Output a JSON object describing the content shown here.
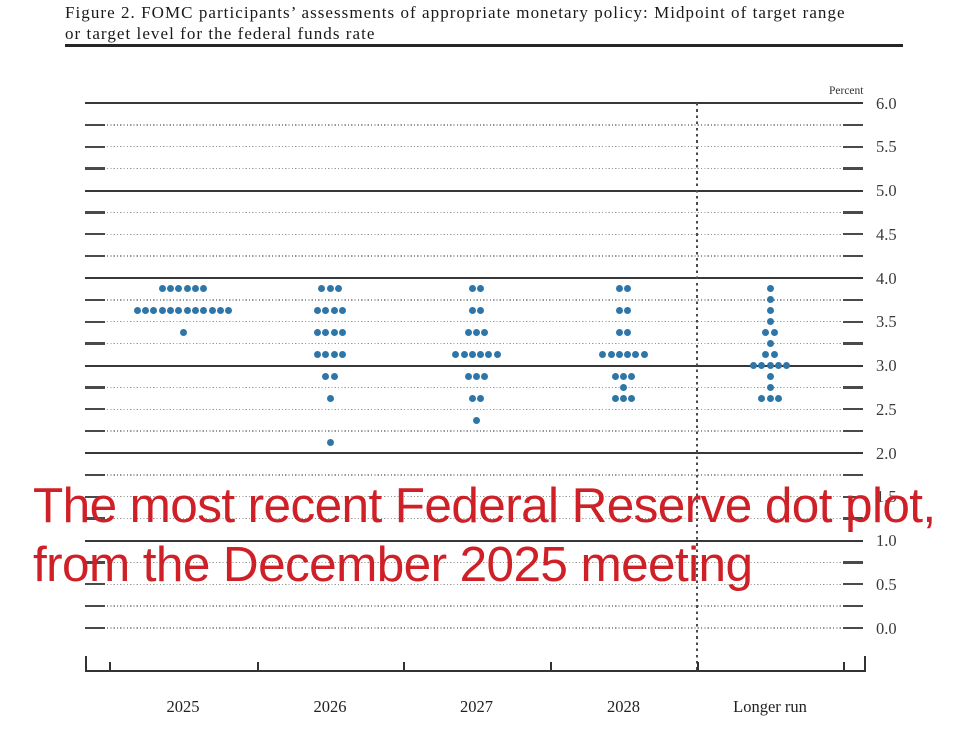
{
  "figure": {
    "caption_line1": "Figure 2. FOMC participants’ assessments of appropriate monetary policy: Midpoint of target range",
    "caption_line2": "or target level for the federal funds rate"
  },
  "chart_data": {
    "type": "scatter",
    "subtype": "fomc-dot-plot",
    "ylabel": "Percent",
    "ylim": [
      0,
      6.25
    ],
    "yticks": [
      "6.0",
      "5.5",
      "5.0",
      "4.5",
      "4.0",
      "3.5",
      "3.0",
      "2.5",
      "2.0",
      "1.5",
      "1.0",
      "0.5",
      "0.0"
    ],
    "solid_gridlines": [
      6.0,
      5.0,
      4.0,
      3.0,
      2.0,
      1.0
    ],
    "dashed_gridline_step": 0.25,
    "legend_position": "none",
    "grid": "on",
    "categories": [
      "2025",
      "2026",
      "2027",
      "2028",
      "Longer run"
    ],
    "columns": [
      {
        "label": "2025",
        "dots": [
          {
            "value": 3.875,
            "count": 6
          },
          {
            "value": 3.625,
            "count": 12
          },
          {
            "value": 3.375,
            "count": 1
          }
        ]
      },
      {
        "label": "2026",
        "dots": [
          {
            "value": 3.875,
            "count": 3
          },
          {
            "value": 3.625,
            "count": 4
          },
          {
            "value": 3.375,
            "count": 4
          },
          {
            "value": 3.125,
            "count": 4
          },
          {
            "value": 2.875,
            "count": 2
          },
          {
            "value": 2.625,
            "count": 1
          },
          {
            "value": 2.125,
            "count": 1
          }
        ]
      },
      {
        "label": "2027",
        "dots": [
          {
            "value": 3.875,
            "count": 2
          },
          {
            "value": 3.625,
            "count": 2
          },
          {
            "value": 3.375,
            "count": 3
          },
          {
            "value": 3.125,
            "count": 6
          },
          {
            "value": 2.875,
            "count": 3
          },
          {
            "value": 2.625,
            "count": 2
          },
          {
            "value": 2.375,
            "count": 1
          }
        ]
      },
      {
        "label": "2028",
        "dots": [
          {
            "value": 3.875,
            "count": 2
          },
          {
            "value": 3.625,
            "count": 2
          },
          {
            "value": 3.375,
            "count": 2
          },
          {
            "value": 3.125,
            "count": 6
          },
          {
            "value": 2.875,
            "count": 3
          },
          {
            "value": 2.75,
            "count": 1
          },
          {
            "value": 2.625,
            "count": 3
          }
        ]
      },
      {
        "label": "Longer run",
        "dots": [
          {
            "value": 3.875,
            "count": 1
          },
          {
            "value": 3.75,
            "count": 1
          },
          {
            "value": 3.625,
            "count": 1
          },
          {
            "value": 3.5,
            "count": 1
          },
          {
            "value": 3.375,
            "count": 2
          },
          {
            "value": 3.25,
            "count": 1
          },
          {
            "value": 3.125,
            "count": 2
          },
          {
            "value": 3.0,
            "count": 5
          },
          {
            "value": 2.875,
            "count": 1
          },
          {
            "value": 2.75,
            "count": 1
          },
          {
            "value": 2.625,
            "count": 3
          }
        ]
      }
    ],
    "dot_color": "#2e76a8"
  },
  "annotation": {
    "line1": "The most recent Federal Reserve dot plot,",
    "line2": "from the December 2025 meeting",
    "color": "#cf2027"
  }
}
